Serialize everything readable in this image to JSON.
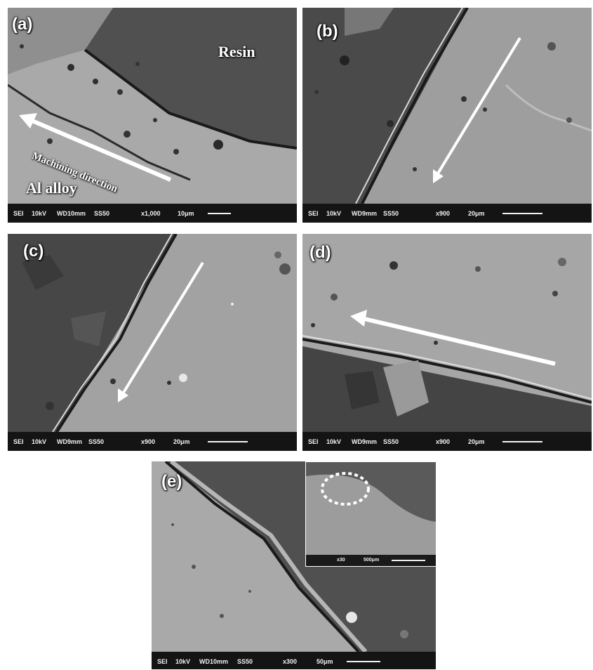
{
  "panels": [
    {
      "label": "(a)",
      "detector": "SEI",
      "voltage": "10kV",
      "working_distance": "WD10mm",
      "spot": "SS50",
      "magnification": "x1,000",
      "scale": "10μm"
    },
    {
      "label": "(b)",
      "detector": "SEI",
      "voltage": "10kV",
      "working_distance": "WD9mm",
      "spot": "SS50",
      "magnification": "x900",
      "scale": "20μm"
    },
    {
      "label": "(c)",
      "detector": "SEI",
      "voltage": "10kV",
      "working_distance": "WD9mm",
      "spot": "SS50",
      "magnification": "x900",
      "scale": "20μm"
    },
    {
      "label": "(d)",
      "detector": "SEI",
      "voltage": "10kV",
      "working_distance": "WD9mm",
      "spot": "SS50",
      "magnification": "x900",
      "scale": "20μm"
    },
    {
      "label": "(e)",
      "detector": "SEI",
      "voltage": "10kV",
      "working_distance": "WD10mm",
      "spot": "SS50",
      "magnification": "x300",
      "scale": "50μm"
    }
  ],
  "annotations": {
    "resin": "Resin",
    "machining_direction": "Machining direction",
    "al_alloy": "Al alloy"
  },
  "inset": {
    "magnification": "x30",
    "scale": "500μm"
  }
}
